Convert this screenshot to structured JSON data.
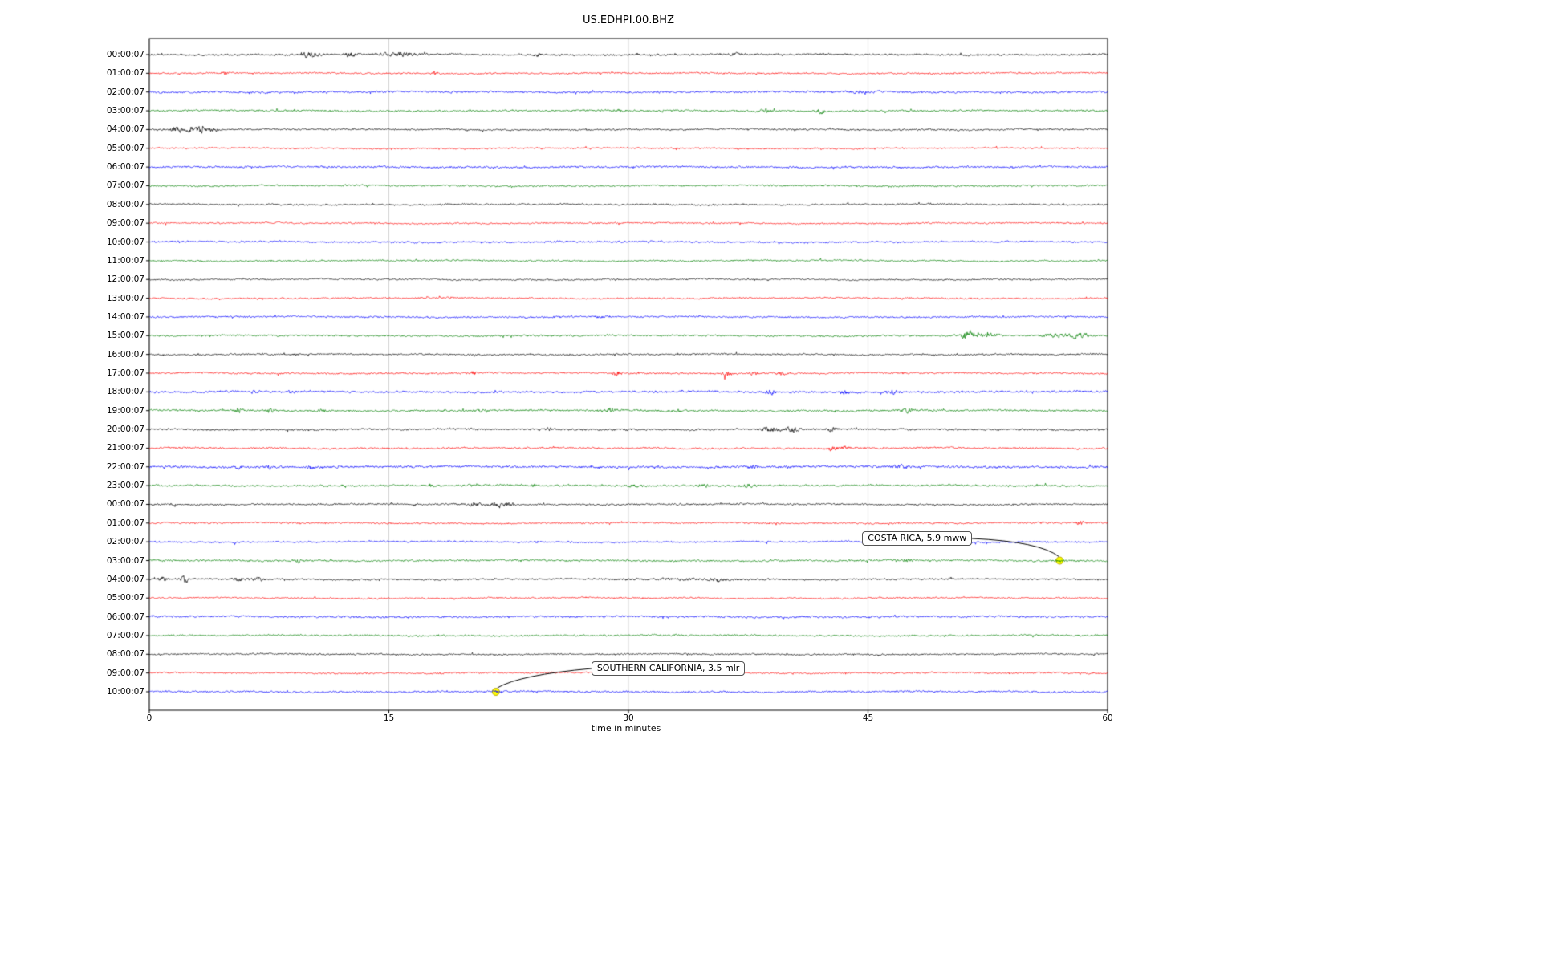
{
  "chart_data": {
    "type": "line",
    "subtype": "helicorder-seismogram",
    "title": "US.EDHPI.00.BHZ",
    "xlabel": "time in minutes",
    "x_ticks": [
      0,
      15,
      30,
      45,
      60
    ],
    "x_range": [
      0,
      60
    ],
    "minutes_per_line": 60,
    "grid": true,
    "color_cycle": [
      "#000000",
      "#ff0000",
      "#0000ff",
      "#008000"
    ],
    "marker_color": "#ffff00",
    "rows": [
      {
        "label": "00:00:07",
        "color": "#000000",
        "base": 1.8,
        "events": [
          [
            9.8,
            4,
            0.25
          ],
          [
            10.4,
            5,
            0.3
          ],
          [
            12.6,
            4.5,
            0.35
          ],
          [
            15.4,
            2.5,
            0.8
          ],
          [
            16.2,
            2.2,
            0.6
          ],
          [
            24.3,
            3,
            0.2
          ],
          [
            36.7,
            2.2,
            0.3
          ]
        ]
      },
      {
        "label": "01:00:07",
        "color": "#ff0000",
        "base": 1.5,
        "events": [
          [
            4.7,
            3.5,
            0.15
          ],
          [
            17.9,
            3.5,
            0.18
          ]
        ]
      },
      {
        "label": "02:00:07",
        "color": "#0000ff",
        "base": 1.9,
        "events": [
          [
            44.5,
            1.5,
            0.6
          ]
        ]
      },
      {
        "label": "03:00:07",
        "color": "#008000",
        "base": 1.7,
        "events": [
          [
            29.5,
            1.5,
            0.3
          ],
          [
            38.6,
            4,
            0.3
          ],
          [
            42.0,
            4,
            0.25
          ]
        ]
      },
      {
        "label": "04:00:07",
        "color": "#000000",
        "base": 1.6,
        "events": [
          [
            1.7,
            5,
            0.35
          ],
          [
            2.5,
            4,
            0.3
          ],
          [
            3.2,
            6,
            0.4
          ],
          [
            4.0,
            3,
            0.3
          ]
        ]
      },
      {
        "label": "05:00:07",
        "color": "#ff0000",
        "base": 1.4,
        "events": []
      },
      {
        "label": "06:00:07",
        "color": "#0000ff",
        "base": 1.8,
        "events": []
      },
      {
        "label": "07:00:07",
        "color": "#008000",
        "base": 1.6,
        "events": []
      },
      {
        "label": "08:00:07",
        "color": "#000000",
        "base": 1.5,
        "events": []
      },
      {
        "label": "09:00:07",
        "color": "#ff0000",
        "base": 1.4,
        "events": []
      },
      {
        "label": "10:00:07",
        "color": "#0000ff",
        "base": 1.7,
        "events": []
      },
      {
        "label": "11:00:07",
        "color": "#008000",
        "base": 1.5,
        "events": []
      },
      {
        "label": "12:00:07",
        "color": "#000000",
        "base": 1.4,
        "events": []
      },
      {
        "label": "13:00:07",
        "color": "#ff0000",
        "base": 1.4,
        "events": []
      },
      {
        "label": "14:00:07",
        "color": "#0000ff",
        "base": 1.6,
        "events": [
          [
            28.2,
            2.2,
            0.25
          ]
        ]
      },
      {
        "label": "15:00:07",
        "color": "#008000",
        "base": 1.7,
        "events": [
          [
            51.2,
            8,
            0.35
          ],
          [
            52.3,
            3,
            0.8
          ],
          [
            56.6,
            2.8,
            0.7
          ],
          [
            57.9,
            3.5,
            0.5
          ],
          [
            58.6,
            2.5,
            0.4
          ]
        ]
      },
      {
        "label": "16:00:07",
        "color": "#000000",
        "base": 1.5,
        "events": [
          [
            9.2,
            3.5,
            0.15
          ]
        ]
      },
      {
        "label": "17:00:07",
        "color": "#ff0000",
        "base": 1.6,
        "events": [
          [
            20.3,
            3,
            0.2
          ],
          [
            29.3,
            3.5,
            0.25
          ],
          [
            36.2,
            4,
            0.3
          ],
          [
            37.8,
            2.5,
            0.3
          ],
          [
            39.5,
            3,
            0.35
          ]
        ]
      },
      {
        "label": "18:00:07",
        "color": "#0000ff",
        "base": 2.0,
        "events": [
          [
            6.6,
            3,
            0.25
          ],
          [
            8.9,
            2.5,
            0.25
          ],
          [
            38.9,
            3.5,
            0.35
          ],
          [
            43.5,
            3.5,
            0.25
          ],
          [
            46.5,
            2.5,
            0.5
          ]
        ]
      },
      {
        "label": "19:00:07",
        "color": "#008000",
        "base": 1.8,
        "events": [
          [
            5.6,
            3,
            0.25
          ],
          [
            7.6,
            2.2,
            0.25
          ],
          [
            10.9,
            2.5,
            0.25
          ],
          [
            20.9,
            3,
            0.25
          ],
          [
            28.9,
            3,
            0.3
          ],
          [
            33.1,
            2,
            0.15
          ],
          [
            47.4,
            3.5,
            0.35
          ]
        ]
      },
      {
        "label": "20:00:07",
        "color": "#000000",
        "base": 1.7,
        "events": [
          [
            25.1,
            1.8,
            0.3
          ],
          [
            30.1,
            2.2,
            0.3
          ],
          [
            38.9,
            4.5,
            0.5
          ],
          [
            40.2,
            4.5,
            0.45
          ],
          [
            42.7,
            3,
            0.3
          ]
        ]
      },
      {
        "label": "21:00:07",
        "color": "#ff0000",
        "base": 1.6,
        "events": [
          [
            42.7,
            4,
            0.4
          ],
          [
            43.6,
            3,
            0.25
          ]
        ]
      },
      {
        "label": "22:00:07",
        "color": "#0000ff",
        "base": 2.1,
        "events": [
          [
            5.6,
            2.5,
            0.25
          ],
          [
            7.5,
            3,
            0.15
          ],
          [
            10.1,
            2.5,
            0.25
          ],
          [
            37.7,
            2.5,
            0.35
          ],
          [
            47.1,
            2.5,
            0.5
          ]
        ]
      },
      {
        "label": "23:00:07",
        "color": "#008000",
        "base": 1.8,
        "events": [
          [
            17.6,
            2.5,
            0.25
          ],
          [
            24.1,
            3,
            0.12
          ],
          [
            30.4,
            2.2,
            0.35
          ],
          [
            34.7,
            2.5,
            0.3
          ],
          [
            37.4,
            3.5,
            0.5
          ]
        ]
      },
      {
        "label": "00:00:07",
        "color": "#000000",
        "base": 1.6,
        "events": [
          [
            15.3,
            2.5,
            0.15
          ],
          [
            20.3,
            3,
            0.4
          ],
          [
            21.6,
            3.5,
            0.5
          ],
          [
            22.4,
            2.5,
            0.35
          ]
        ]
      },
      {
        "label": "01:00:07",
        "color": "#ff0000",
        "base": 1.5,
        "events": [
          [
            58.3,
            3.5,
            0.25
          ]
        ]
      },
      {
        "label": "02:00:07",
        "color": "#0000ff",
        "base": 1.6,
        "events": [
          [
            24.3,
            2,
            0.12
          ]
        ]
      },
      {
        "label": "03:00:07",
        "color": "#008000",
        "base": 1.7,
        "events": [
          [
            9.3,
            3.5,
            0.15
          ],
          [
            47.3,
            2,
            0.4
          ],
          [
            57.0,
            1.8,
            0.3
          ]
        ]
      },
      {
        "label": "04:00:07",
        "color": "#000000",
        "base": 1.6,
        "events": [
          [
            0.8,
            4,
            0.25
          ],
          [
            2.2,
            7,
            0.25
          ],
          [
            5.6,
            3.5,
            0.4
          ],
          [
            6.8,
            3.5,
            0.3
          ],
          [
            33.5,
            1.2,
            3.5
          ],
          [
            35.6,
            2,
            0.4
          ]
        ]
      },
      {
        "label": "05:00:07",
        "color": "#ff0000",
        "base": 1.4,
        "events": []
      },
      {
        "label": "06:00:07",
        "color": "#0000ff",
        "base": 1.8,
        "events": []
      },
      {
        "label": "07:00:07",
        "color": "#008000",
        "base": 1.6,
        "events": []
      },
      {
        "label": "08:00:07",
        "color": "#000000",
        "base": 1.5,
        "events": []
      },
      {
        "label": "09:00:07",
        "color": "#ff0000",
        "base": 1.4,
        "events": []
      },
      {
        "label": "10:00:07",
        "color": "#0000ff",
        "base": 1.7,
        "events": [
          [
            21.7,
            1.2,
            0.2
          ]
        ]
      }
    ],
    "annotations": [
      {
        "text": "COSTA RICA, 5.9 mww",
        "row": 27,
        "row_label": "03:00:07",
        "minute": 57.0
      },
      {
        "text": "SOUTHERN CALIFORNIA, 3.5 mlr",
        "row": 34,
        "row_label": "10:00:07",
        "minute": 21.7
      }
    ]
  }
}
